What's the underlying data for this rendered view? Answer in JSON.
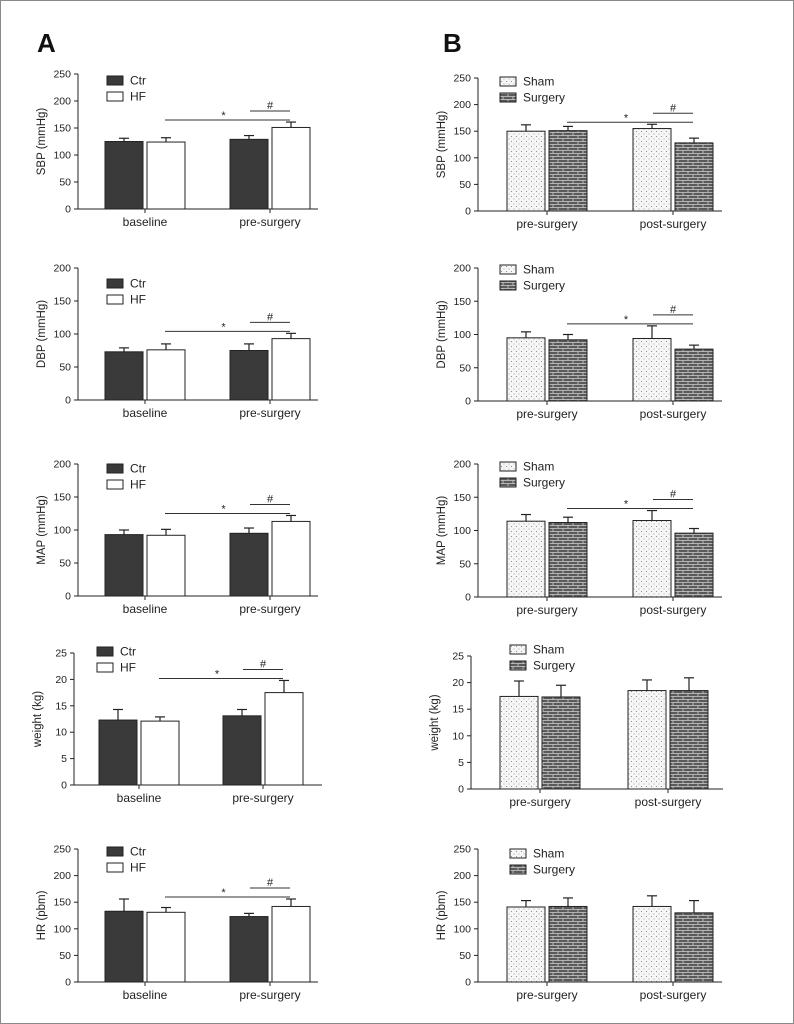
{
  "panel_labels": [
    "A",
    "B"
  ],
  "chart_data": [
    {
      "id": "A-SBP",
      "type": "bar",
      "categories": [
        "baseline",
        "pre-surgery"
      ],
      "ylabel": "SBP (mmHg)",
      "ylim": [
        0,
        250
      ],
      "yticks": [
        0,
        50,
        100,
        150,
        200,
        250
      ],
      "series": [
        {
          "name": "Ctr",
          "values": [
            125,
            129
          ],
          "errors": [
            6,
            7
          ],
          "color": "#3a3a3a"
        },
        {
          "name": "HF",
          "values": [
            124,
            151
          ],
          "errors": [
            8,
            10
          ],
          "color": "#ffffff"
        }
      ],
      "annotations": [
        "*",
        "#"
      ],
      "legend_position": "top-left"
    },
    {
      "id": "A-DBP",
      "type": "bar",
      "categories": [
        "baseline",
        "pre-surgery"
      ],
      "ylabel": "DBP (mmHg)",
      "ylim": [
        0,
        200
      ],
      "yticks": [
        0,
        50,
        100,
        150,
        200
      ],
      "series": [
        {
          "name": "Ctr",
          "values": [
            73,
            75
          ],
          "errors": [
            6,
            10
          ],
          "color": "#3a3a3a"
        },
        {
          "name": "HF",
          "values": [
            76,
            93
          ],
          "errors": [
            9,
            8
          ],
          "color": "#ffffff"
        }
      ],
      "annotations": [
        "*",
        "#"
      ],
      "legend_position": "top-left"
    },
    {
      "id": "A-MAP",
      "type": "bar",
      "categories": [
        "baseline",
        "pre-surgery"
      ],
      "ylabel": "MAP (mmHg)",
      "ylim": [
        0,
        200
      ],
      "yticks": [
        0,
        50,
        100,
        150,
        200
      ],
      "series": [
        {
          "name": "Ctr",
          "values": [
            93,
            95
          ],
          "errors": [
            7,
            8
          ],
          "color": "#3a3a3a"
        },
        {
          "name": "HF",
          "values": [
            92,
            113
          ],
          "errors": [
            9,
            9
          ],
          "color": "#ffffff"
        }
      ],
      "annotations": [
        "*",
        "#"
      ],
      "legend_position": "top-left"
    },
    {
      "id": "A-weight",
      "type": "bar",
      "categories": [
        "baseline",
        "pre-surgery"
      ],
      "ylabel": "weight (kg)",
      "ylim": [
        0,
        25
      ],
      "yticks": [
        0,
        5,
        10,
        15,
        20,
        25
      ],
      "series": [
        {
          "name": "Ctr",
          "values": [
            12.3,
            13.1
          ],
          "errors": [
            2.0,
            1.2
          ],
          "color": "#3a3a3a"
        },
        {
          "name": "HF",
          "values": [
            12.1,
            17.5
          ],
          "errors": [
            0.8,
            2.3
          ],
          "color": "#ffffff"
        }
      ],
      "annotations": [
        "*",
        "#"
      ],
      "legend_position": "top-left"
    },
    {
      "id": "A-HR",
      "type": "bar",
      "categories": [
        "baseline",
        "pre-surgery"
      ],
      "ylabel": "HR (pbm)",
      "ylim": [
        0,
        250
      ],
      "yticks": [
        0,
        50,
        100,
        150,
        200,
        250
      ],
      "series": [
        {
          "name": "Ctr",
          "values": [
            133,
            123
          ],
          "errors": [
            23,
            6
          ],
          "color": "#3a3a3a"
        },
        {
          "name": "HF",
          "values": [
            131,
            142
          ],
          "errors": [
            9,
            14
          ],
          "color": "#ffffff"
        }
      ],
      "annotations": [
        "*",
        "#"
      ],
      "legend_position": "top-left"
    },
    {
      "id": "B-SBP",
      "type": "bar",
      "categories": [
        "pre-surgery",
        "post-surgery"
      ],
      "ylabel": "SBP (mmHg)",
      "ylim": [
        0,
        250
      ],
      "yticks": [
        0,
        50,
        100,
        150,
        200,
        250
      ],
      "series": [
        {
          "name": "Sham",
          "values": [
            150,
            155
          ],
          "errors": [
            12,
            8
          ],
          "pattern": "dots"
        },
        {
          "name": "Surgery",
          "values": [
            151,
            128
          ],
          "errors": [
            8,
            9
          ],
          "pattern": "brick"
        }
      ],
      "annotations": [
        "*",
        "#"
      ],
      "legend_position": "top-left"
    },
    {
      "id": "B-DBP",
      "type": "bar",
      "categories": [
        "pre-surgery",
        "post-surgery"
      ],
      "ylabel": "DBP (mmHg)",
      "ylim": [
        0,
        200
      ],
      "yticks": [
        0,
        50,
        100,
        150,
        200
      ],
      "series": [
        {
          "name": "Sham",
          "values": [
            95,
            94
          ],
          "errors": [
            9,
            19
          ],
          "pattern": "dots"
        },
        {
          "name": "Surgery",
          "values": [
            92,
            78
          ],
          "errors": [
            8,
            6
          ],
          "pattern": "brick"
        }
      ],
      "annotations": [
        "*",
        "#"
      ],
      "legend_position": "top-left"
    },
    {
      "id": "B-MAP",
      "type": "bar",
      "categories": [
        "pre-surgery",
        "post-surgery"
      ],
      "ylabel": "MAP (mmHg)",
      "ylim": [
        0,
        200
      ],
      "yticks": [
        0,
        50,
        100,
        150,
        200
      ],
      "series": [
        {
          "name": "Sham",
          "values": [
            114,
            115
          ],
          "errors": [
            10,
            15
          ],
          "pattern": "dots"
        },
        {
          "name": "Surgery",
          "values": [
            112,
            96
          ],
          "errors": [
            8,
            7
          ],
          "pattern": "brick"
        }
      ],
      "annotations": [
        "*",
        "#"
      ],
      "legend_position": "top-left"
    },
    {
      "id": "B-weight",
      "type": "bar",
      "categories": [
        "pre-surgery",
        "post-surgery"
      ],
      "ylabel": "weight (kg)",
      "ylim": [
        0,
        25
      ],
      "yticks": [
        0,
        5,
        10,
        15,
        20,
        25
      ],
      "series": [
        {
          "name": "Sham",
          "values": [
            17.4,
            18.5
          ],
          "errors": [
            2.9,
            2.0
          ],
          "pattern": "dots"
        },
        {
          "name": "Surgery",
          "values": [
            17.3,
            18.5
          ],
          "errors": [
            2.2,
            2.4
          ],
          "pattern": "brick"
        }
      ],
      "annotations": [],
      "legend_position": "top-left"
    },
    {
      "id": "B-HR",
      "type": "bar",
      "categories": [
        "pre-surgery",
        "post-surgery"
      ],
      "ylabel": "HR (pbm)",
      "ylim": [
        0,
        250
      ],
      "yticks": [
        0,
        50,
        100,
        150,
        200,
        250
      ],
      "series": [
        {
          "name": "Sham",
          "values": [
            141,
            142
          ],
          "errors": [
            12,
            20
          ],
          "pattern": "dots"
        },
        {
          "name": "Surgery",
          "values": [
            142,
            130
          ],
          "errors": [
            16,
            23
          ],
          "pattern": "brick"
        }
      ],
      "annotations": [],
      "legend_position": "top-left"
    }
  ]
}
